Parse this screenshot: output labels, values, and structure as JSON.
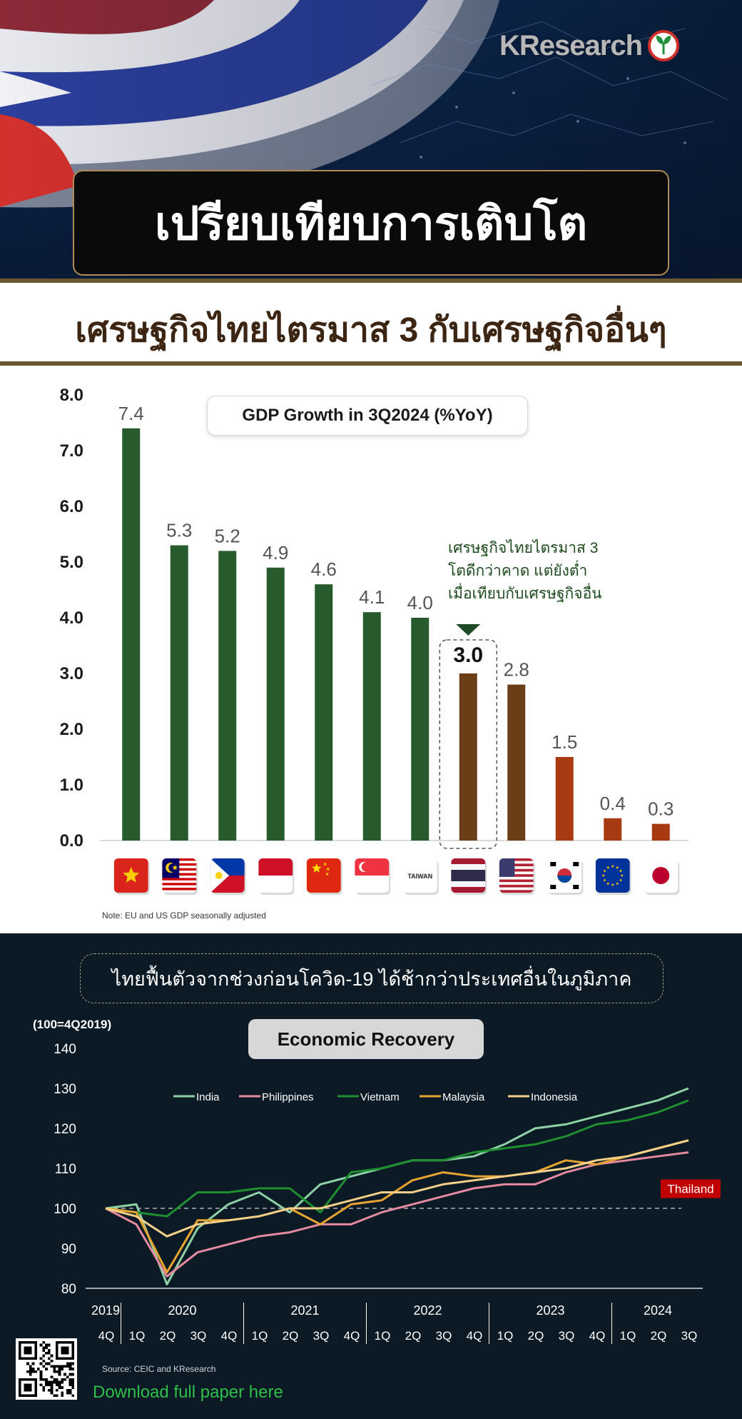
{
  "header": {
    "brand": "KResearch",
    "title": "เปรียบเทียบการเติบโต",
    "subtitle": "เศรษฐกิจไทยไตรมาส 3 กับเศรษฐกิจอื่นๆ"
  },
  "colors": {
    "green_bar": "#275a2c",
    "brown_bar": "#6a3e17",
    "orange_bar": "#a83a12",
    "thailand_line": "#c00000",
    "india": "#8fd1a7",
    "philippines": "#e58aa0",
    "vietnam": "#1f8f2f",
    "malaysia": "#e8a531",
    "indonesia": "#f4d08a"
  },
  "callout": {
    "line1": "เศรษฐกิจไทยไตรมาส 3",
    "line2": "โตดีกว่าคาด แต่ยังต่ำ",
    "line3": "เมื่อเทียบกับเศรษฐกิจอื่น"
  },
  "bar_note": "Note: EU and US GDP seasonally adjusted",
  "line_section": {
    "banner": "ไทยฟื้นตัวจากช่วงก่อนโควิด-19 ได้ช้ากว่าประเทศอื่นในภูมิภาค",
    "unit": "(100=4Q2019)",
    "source": "Source: CEIC and KResearch",
    "download": "Download full paper here"
  },
  "chart_data": [
    {
      "type": "bar",
      "title": "GDP Growth in 3Q2024 (%YoY)",
      "categories": [
        "Vietnam",
        "Malaysia",
        "Philippines",
        "Indonesia",
        "China",
        "Singapore",
        "Taiwan",
        "Thailand",
        "United States",
        "South Korea",
        "EU",
        "Japan"
      ],
      "flag_labels": [
        "",
        "",
        "",
        "",
        "",
        "",
        "TAIWAN",
        "",
        "",
        "",
        "",
        ""
      ],
      "values": [
        7.4,
        5.3,
        5.2,
        4.9,
        4.6,
        4.1,
        4.0,
        3.0,
        2.8,
        1.5,
        0.4,
        0.3
      ],
      "value_labels": [
        "7.4",
        "5.3",
        "5.2",
        "4.9",
        "4.6",
        "4.1",
        "4.0",
        "3.0",
        "2.8",
        "1.5",
        "0.4",
        "0.3"
      ],
      "ylim": [
        0,
        8
      ],
      "yticks": [
        "0.0",
        "1.0",
        "2.0",
        "3.0",
        "4.0",
        "5.0",
        "6.0",
        "7.0",
        "8.0"
      ],
      "highlight": "Thailand"
    },
    {
      "type": "line",
      "title": "Economic Recovery",
      "ylim": [
        80,
        140
      ],
      "yticks": [
        "80",
        "90",
        "100",
        "110",
        "120",
        "130",
        "140"
      ],
      "baseline": 100,
      "years": [
        "2019",
        "2020",
        "2021",
        "2022",
        "2023",
        "2024"
      ],
      "x": [
        "4Q",
        "1Q",
        "2Q",
        "3Q",
        "4Q",
        "1Q",
        "2Q",
        "3Q",
        "4Q",
        "1Q",
        "2Q",
        "3Q",
        "4Q",
        "1Q",
        "2Q",
        "3Q",
        "4Q",
        "1Q",
        "2Q",
        "3Q"
      ],
      "series": [
        {
          "name": "India",
          "values": [
            100,
            101,
            81,
            95,
            101,
            104,
            99,
            106,
            108,
            110,
            112,
            112,
            113,
            116,
            120,
            121,
            123,
            125,
            127,
            130
          ]
        },
        {
          "name": "Philippines",
          "values": [
            100,
            96,
            83,
            89,
            91,
            93,
            94,
            96,
            96,
            99,
            101,
            103,
            105,
            106,
            106,
            109,
            111,
            112,
            113,
            114
          ]
        },
        {
          "name": "Vietnam",
          "values": [
            100,
            99,
            98,
            104,
            104,
            105,
            105,
            99,
            109,
            110,
            112,
            112,
            114,
            115,
            116,
            118,
            121,
            122,
            124,
            127
          ]
        },
        {
          "name": "Malaysia",
          "values": [
            100,
            99,
            84,
            97,
            97,
            98,
            100,
            96,
            101,
            102,
            107,
            109,
            108,
            108,
            109,
            112,
            111,
            113,
            115,
            117
          ]
        },
        {
          "name": "Indonesia",
          "values": [
            100,
            98,
            93,
            96,
            97,
            98,
            100,
            100,
            102,
            104,
            104,
            106,
            107,
            108,
            109,
            110,
            112,
            113,
            115,
            117
          ]
        },
        {
          "name": "Thailand",
          "values": [
            100,
            98,
            89,
            95,
            96,
            96,
            96,
            97,
            97,
            98,
            98,
            99,
            99,
            100,
            100,
            101,
            101,
            102,
            103,
            104
          ]
        }
      ],
      "thailand_label": "Thailand"
    }
  ]
}
